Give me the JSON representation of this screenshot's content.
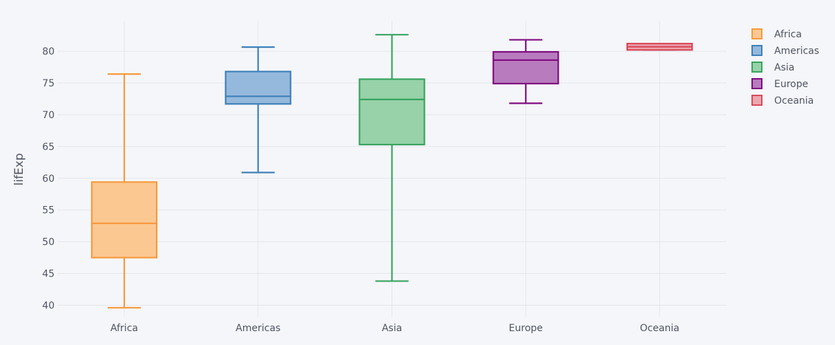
{
  "chart_data": {
    "type": "box",
    "xlabel": "",
    "ylabel": "lifExp",
    "ylim": [
      38.2,
      84.8
    ],
    "yticks": [
      40,
      45,
      50,
      55,
      60,
      65,
      70,
      75,
      80
    ],
    "categories": [
      "Africa",
      "Americas",
      "Asia",
      "Europe",
      "Oceania"
    ],
    "grid": true,
    "legend_position": "top-right",
    "series": [
      {
        "name": "Africa",
        "color": "#F79A3E",
        "fill": "#FBC892",
        "min": 39.6,
        "q1": 47.5,
        "median": 52.9,
        "q3": 59.4,
        "max": 76.4
      },
      {
        "name": "Americas",
        "color": "#3D80B9",
        "fill": "#95B9DC",
        "min": 60.9,
        "q1": 71.7,
        "median": 72.9,
        "q3": 76.8,
        "max": 80.65
      },
      {
        "name": "Asia",
        "color": "#37A35F",
        "fill": "#97D2A8",
        "min": 43.8,
        "q1": 65.3,
        "median": 72.4,
        "q3": 75.6,
        "max": 82.6
      },
      {
        "name": "Europe",
        "color": "#7F0A7F",
        "fill": "#B77BBE",
        "min": 71.8,
        "q1": 74.9,
        "median": 78.6,
        "q3": 79.9,
        "max": 81.8
      },
      {
        "name": "Oceania",
        "color": "#D9485A",
        "fill": "#EBA7AE",
        "min": 80.2,
        "q1": 80.2,
        "median": 80.7,
        "q3": 81.2,
        "max": 81.2
      }
    ]
  }
}
